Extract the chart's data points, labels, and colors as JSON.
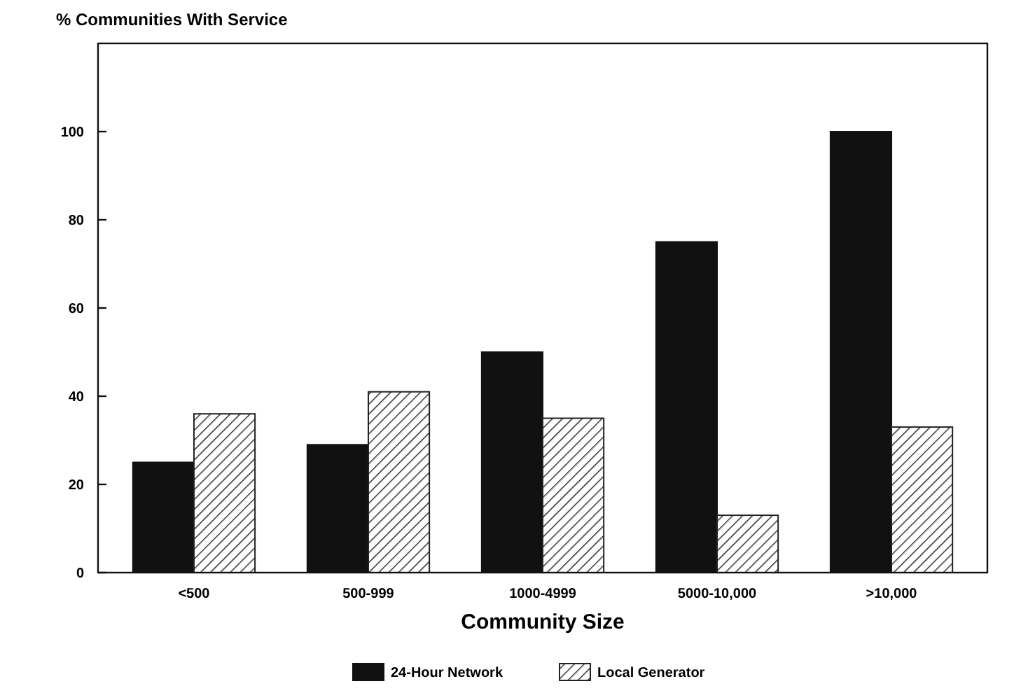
{
  "chart_data": {
    "type": "bar",
    "title": "% Communities With Service",
    "xlabel": "Community Size",
    "categories": [
      "<500",
      "500-999",
      "1000-4999",
      "5000-10,000",
      ">10,000"
    ],
    "series": [
      {
        "name": "24-Hour Network",
        "color": "#111111",
        "values": [
          25,
          29,
          50,
          75,
          100
        ]
      },
      {
        "name": "Local Generator",
        "color": "#222222",
        "values": [
          36,
          41,
          35,
          13,
          33
        ]
      }
    ],
    "ylim": [
      0,
      120
    ],
    "yticks": [
      0,
      20,
      40,
      60,
      80,
      100
    ],
    "grid": false,
    "legend": "bottom"
  }
}
